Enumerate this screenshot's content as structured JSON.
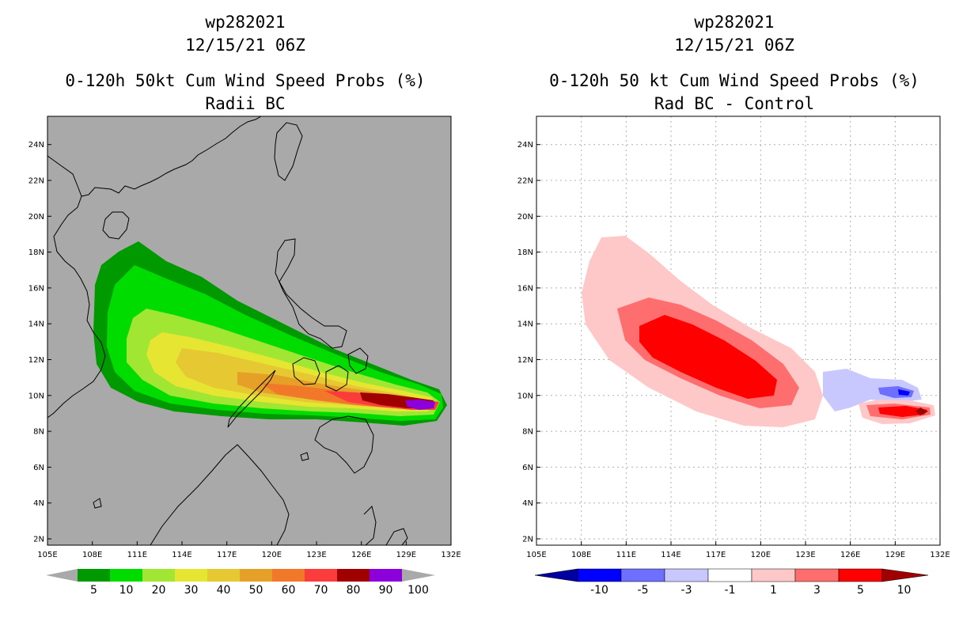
{
  "left_panel": {
    "id": "wp282021",
    "datetime": "12/15/21 06Z",
    "title": "0-120h 50kt Cum Wind Speed Probs (%)",
    "subtitle": "Radii BC",
    "background_color": "#a9a9a9",
    "colorbar": {
      "labels": [
        "5",
        "10",
        "20",
        "30",
        "40",
        "50",
        "60",
        "70",
        "80",
        "90",
        "100"
      ],
      "colors": [
        "#009a00",
        "#00dc00",
        "#a0e632",
        "#e6e632",
        "#e6c832",
        "#e6a028",
        "#f07828",
        "#fa3c3c",
        "#a00000",
        "#8c00dc"
      ]
    }
  },
  "right_panel": {
    "id": "wp282021",
    "datetime": "12/15/21 06Z",
    "title": "0-120h 50 kt Cum Wind Speed Probs (%)",
    "subtitle": "Rad BC - Control",
    "background_color": "#ffffff",
    "colorbar": {
      "labels": [
        "-10",
        "-5",
        "-3",
        "-1",
        "1",
        "3",
        "5",
        "10"
      ],
      "colors": [
        "#0000a0",
        "#0000ff",
        "#6e6eff",
        "#c8c8ff",
        "#ffffff",
        "#ffc8c8",
        "#ff6e6e",
        "#ff0000",
        "#a00000"
      ]
    }
  },
  "map_axes": {
    "lon_labels": [
      "105E",
      "108E",
      "111E",
      "114E",
      "117E",
      "120E",
      "123E",
      "126E",
      "129E",
      "132E"
    ],
    "lat_labels": [
      "2N",
      "4N",
      "6N",
      "8N",
      "10N",
      "12N",
      "14N",
      "16N",
      "18N",
      "20N",
      "22N",
      "24N"
    ]
  }
}
